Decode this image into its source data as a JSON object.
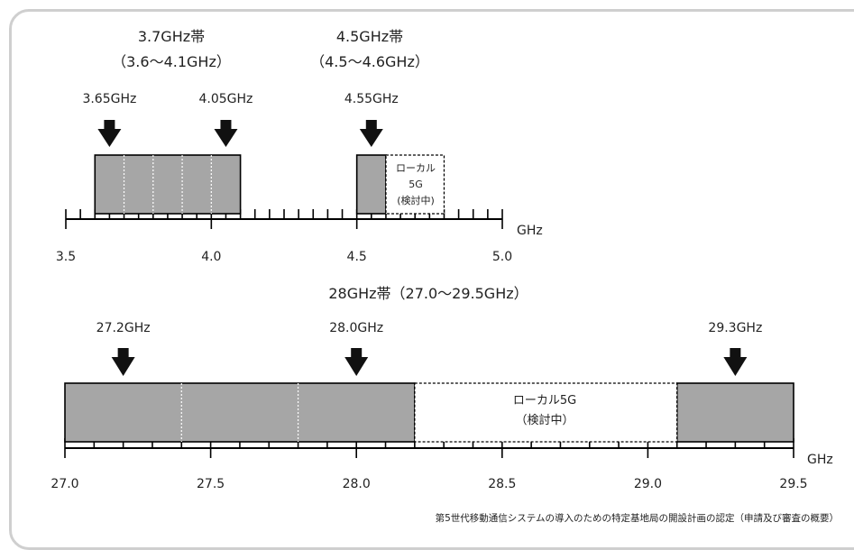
{
  "band37": {
    "title": "3.7GHz帯",
    "range": "（3.6～4.1GHz）"
  },
  "band45": {
    "title": "4.5GHz帯",
    "range": "（4.5～4.6GHz）"
  },
  "band28": {
    "title": "28GHz帯（27.0～29.5GHz）"
  },
  "axis_unit": "GHz",
  "top_axis": {
    "min": 3.5,
    "max": 5.0,
    "minor_step": 0.05,
    "labels": [
      "3.5",
      "4.0",
      "4.5",
      "5.0"
    ]
  },
  "bottom_axis": {
    "min": 27.0,
    "max": 29.5,
    "minor_step": 0.1,
    "labels": [
      "27.0",
      "27.5",
      "28.0",
      "28.5",
      "29.0",
      "29.5"
    ]
  },
  "top_markers": [
    {
      "label": "3.65GHz",
      "value": 3.65
    },
    {
      "label": "4.05GHz",
      "value": 4.05
    },
    {
      "label": "4.55GHz",
      "value": 4.55
    }
  ],
  "bottom_markers": [
    {
      "label": "27.2GHz",
      "value": 27.2
    },
    {
      "label": "28.0GHz",
      "value": 28.0
    },
    {
      "label": "29.3GHz",
      "value": 29.3
    }
  ],
  "top_blocks": [
    {
      "start": 3.6,
      "end": 4.1,
      "dividers": [
        3.7,
        3.8,
        3.9,
        4.0
      ]
    },
    {
      "start": 4.5,
      "end": 4.6,
      "dividers": []
    }
  ],
  "top_local": {
    "start": 4.6,
    "end": 4.8,
    "lines": [
      "ローカル",
      "5G",
      "(検討中)"
    ]
  },
  "bottom_blocks": [
    {
      "start": 27.0,
      "end": 28.2,
      "dividers": [
        27.4,
        27.8
      ]
    },
    {
      "start": 29.1,
      "end": 29.5,
      "dividers": []
    }
  ],
  "bottom_local": {
    "start": 28.2,
    "end": 29.1,
    "lines": [
      "ローカル5G",
      "（検討中）"
    ]
  },
  "caption": "第5世代移動通信システムの導入のための特定基地局の開設計画の認定（申請及び審査の概要）",
  "colors": {
    "block": "#a6a6a6",
    "stroke": "#000000",
    "frame": "#cfcfcf"
  }
}
